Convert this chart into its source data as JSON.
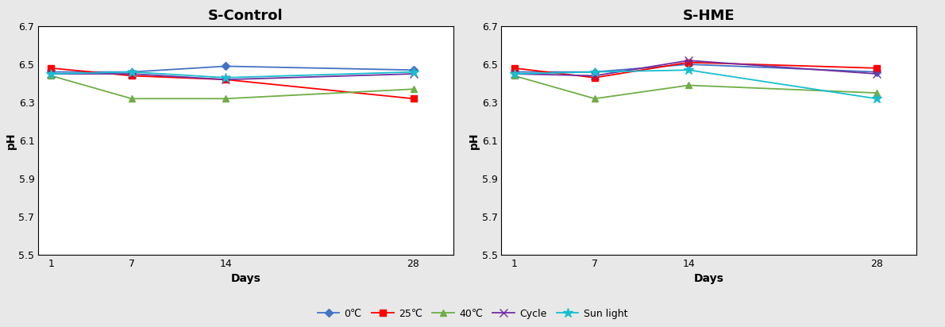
{
  "days": [
    1,
    7,
    14,
    28
  ],
  "s_control": {
    "0C": [
      6.46,
      6.46,
      6.49,
      6.47
    ],
    "25C": [
      6.48,
      6.44,
      6.42,
      6.32
    ],
    "40C": [
      6.44,
      6.32,
      6.32,
      6.37
    ],
    "Cycle": [
      6.45,
      6.45,
      6.42,
      6.45
    ],
    "Sun light": [
      6.45,
      6.46,
      6.43,
      6.46
    ]
  },
  "s_hme": {
    "0C": [
      6.46,
      6.46,
      6.5,
      6.46
    ],
    "25C": [
      6.48,
      6.43,
      6.51,
      6.48
    ],
    "40C": [
      6.44,
      6.32,
      6.39,
      6.35
    ],
    "Cycle": [
      6.45,
      6.44,
      6.52,
      6.45
    ],
    "Sun light": [
      6.45,
      6.46,
      6.47,
      6.32
    ]
  },
  "colors": {
    "0C": "#4472C4",
    "25C": "#FF0000",
    "40C": "#70AD47",
    "Cycle": "#7030A0",
    "Sun light": "#17BECF"
  },
  "markers": {
    "0C": "D",
    "25C": "s",
    "40C": "^",
    "Cycle": "x",
    "Sun light": "*"
  },
  "marker_sizes": {
    "0C": 5,
    "25C": 6,
    "40C": 6,
    "Cycle": 7,
    "Sun light": 9
  },
  "labels": {
    "0C": "0℃",
    "25C": "25℃",
    "40C": "40℃",
    "Cycle": "Cycle",
    "Sun light": "Sun light"
  },
  "title_left": "S-Control",
  "title_right": "S-HME",
  "xlabel": "Days",
  "ylabel": "pH",
  "ylim": [
    5.5,
    6.7
  ],
  "yticks": [
    5.5,
    5.7,
    5.9,
    6.1,
    6.3,
    6.5,
    6.7
  ],
  "xticks": [
    1,
    7,
    14,
    28
  ],
  "linewidth": 1.3,
  "tick_fontsize": 9,
  "label_fontsize": 10,
  "title_fontsize": 13
}
